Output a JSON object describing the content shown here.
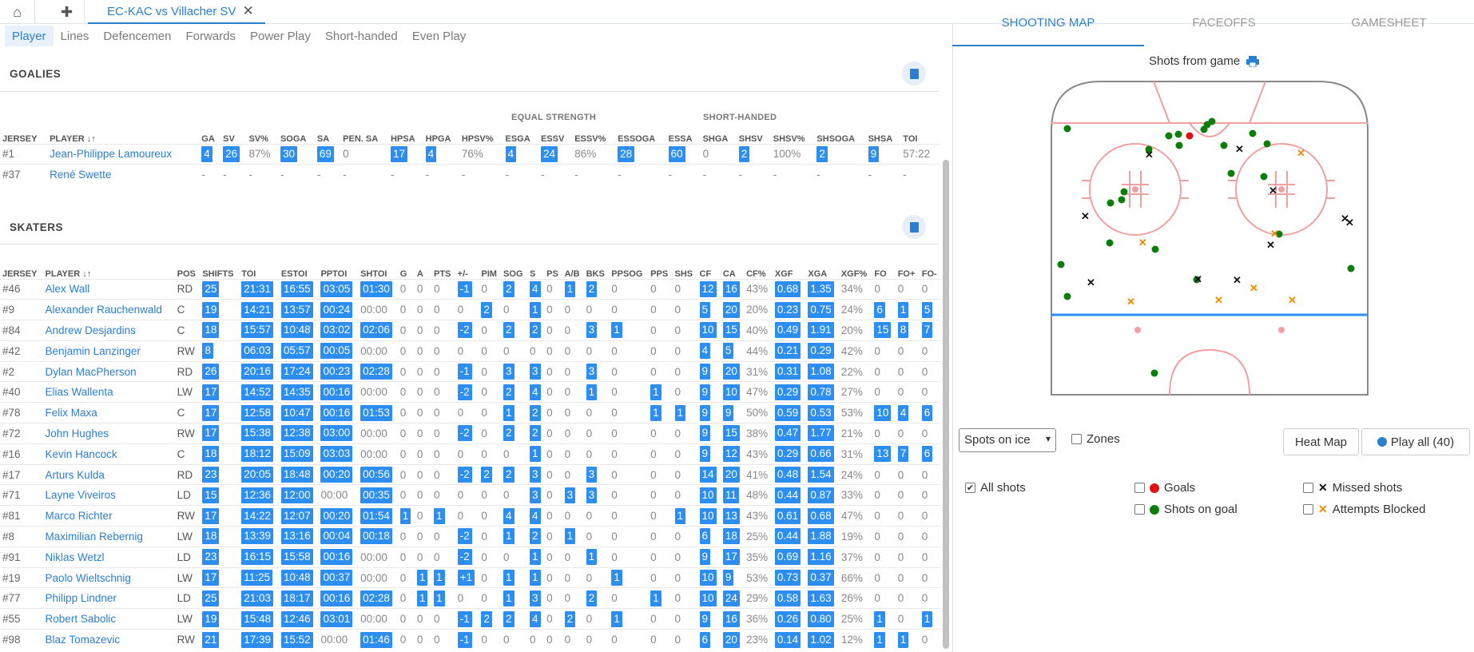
{
  "tabs": {
    "game_tab": "EC-KAC vs Villacher SV",
    "close": "✕",
    "home": "⌂",
    "add": "✚"
  },
  "subtabs": [
    "Player",
    "Lines",
    "Defencemen",
    "Forwards",
    "Power Play",
    "Short-handed",
    "Even Play"
  ],
  "goalies": {
    "title": "GOALIES",
    "group_equal": "EQUAL STRENGTH",
    "group_short": "SHORT-HANDED",
    "headers": [
      "JERSEY",
      "PLAYER ↓↑",
      "GA",
      "SV",
      "SV%",
      "SOGA",
      "SA",
      "PEN. SA",
      "HPSA",
      "HPGA",
      "HPSV%",
      "ESGA",
      "ESSV",
      "ESSV%",
      "ESSOGA",
      "ESSA",
      "SHGA",
      "SHSV",
      "SHSV%",
      "SHSOGA",
      "SHSA",
      "TOI"
    ],
    "rows": [
      [
        "#1",
        "Jean-Philippe Lamoureux",
        "4",
        "26",
        "87%",
        "30",
        "69",
        "0",
        "17",
        "4",
        "76%",
        "4",
        "24",
        "86%",
        "28",
        "60",
        "0",
        "2",
        "100%",
        "2",
        "9",
        "57:22"
      ],
      [
        "#37",
        "René Swette",
        "-",
        "-",
        "-",
        "-",
        "-",
        "-",
        "-",
        "-",
        "-",
        "-",
        "-",
        "-",
        "-",
        "-",
        "-",
        "-",
        "-",
        "-",
        "-",
        "-"
      ]
    ]
  },
  "skaters": {
    "title": "SKATERS",
    "headers": [
      "JERSEY",
      "PLAYER ↓↑",
      "POS",
      "SHIFTS",
      "TOI",
      "ESTOI",
      "PPTOI",
      "SHTOI",
      "G",
      "A",
      "PTS",
      "+/-",
      "PIM",
      "SOG",
      "S",
      "PS",
      "A/B",
      "BKS",
      "PPSOG",
      "PPS",
      "SHS",
      "CF",
      "CA",
      "CF%",
      "XGF",
      "XGA",
      "XGF%",
      "FO",
      "FO+",
      "FO-"
    ],
    "rows": [
      [
        "#46",
        "Alex Wall",
        "RD",
        "25",
        "21:31",
        "16:55",
        "03:05",
        "01:30",
        "0",
        "0",
        "0",
        "-1",
        "0",
        "2",
        "4",
        "0",
        "1",
        "2",
        "0",
        "0",
        "0",
        "12",
        "16",
        "43%",
        "0.68",
        "1.35",
        "34%",
        "0",
        "0",
        "0"
      ],
      [
        "#9",
        "Alexander Rauchenwald",
        "C",
        "19",
        "14:21",
        "13:57",
        "00:24",
        "00:00",
        "0",
        "0",
        "0",
        "0",
        "2",
        "0",
        "1",
        "0",
        "0",
        "0",
        "0",
        "0",
        "0",
        "5",
        "20",
        "20%",
        "0.23",
        "0.75",
        "24%",
        "6",
        "1",
        "5"
      ],
      [
        "#84",
        "Andrew Desjardins",
        "C",
        "18",
        "15:57",
        "10:48",
        "03:02",
        "02:06",
        "0",
        "0",
        "0",
        "-2",
        "0",
        "2",
        "2",
        "0",
        "0",
        "3",
        "1",
        "0",
        "0",
        "10",
        "15",
        "40%",
        "0.49",
        "1.91",
        "20%",
        "15",
        "8",
        "7"
      ],
      [
        "#42",
        "Benjamin Lanzinger",
        "RW",
        "8",
        "06:03",
        "05:57",
        "00:05",
        "00:00",
        "0",
        "0",
        "0",
        "0",
        "0",
        "0",
        "0",
        "0",
        "0",
        "0",
        "0",
        "0",
        "0",
        "4",
        "5",
        "44%",
        "0.21",
        "0.29",
        "42%",
        "0",
        "0",
        "0"
      ],
      [
        "#2",
        "Dylan MacPherson",
        "RD",
        "26",
        "20:16",
        "17:24",
        "00:23",
        "02:28",
        "0",
        "0",
        "0",
        "-1",
        "0",
        "3",
        "3",
        "0",
        "0",
        "3",
        "0",
        "0",
        "0",
        "9",
        "20",
        "31%",
        "0.31",
        "1.08",
        "22%",
        "0",
        "0",
        "0"
      ],
      [
        "#40",
        "Elias Wallenta",
        "LW",
        "17",
        "14:52",
        "14:35",
        "00:16",
        "00:00",
        "0",
        "0",
        "0",
        "-2",
        "0",
        "2",
        "4",
        "0",
        "0",
        "1",
        "0",
        "1",
        "0",
        "9",
        "10",
        "47%",
        "0.29",
        "0.78",
        "27%",
        "0",
        "0",
        "0"
      ],
      [
        "#78",
        "Felix Maxa",
        "C",
        "17",
        "12:58",
        "10:47",
        "00:16",
        "01:53",
        "0",
        "0",
        "0",
        "0",
        "0",
        "1",
        "2",
        "0",
        "0",
        "0",
        "0",
        "1",
        "1",
        "9",
        "9",
        "50%",
        "0.59",
        "0.53",
        "53%",
        "10",
        "4",
        "6"
      ],
      [
        "#72",
        "John Hughes",
        "RW",
        "17",
        "15:38",
        "12:38",
        "03:00",
        "00:00",
        "0",
        "0",
        "0",
        "-2",
        "0",
        "2",
        "2",
        "0",
        "0",
        "0",
        "0",
        "0",
        "0",
        "9",
        "15",
        "38%",
        "0.47",
        "1.77",
        "21%",
        "0",
        "0",
        "0"
      ],
      [
        "#16",
        "Kevin Hancock",
        "C",
        "18",
        "18:12",
        "15:09",
        "03:03",
        "00:00",
        "0",
        "0",
        "0",
        "0",
        "0",
        "0",
        "1",
        "0",
        "0",
        "0",
        "0",
        "0",
        "0",
        "9",
        "12",
        "43%",
        "0.29",
        "0.66",
        "31%",
        "13",
        "7",
        "6"
      ],
      [
        "#17",
        "Arturs Kulda",
        "RD",
        "23",
        "20:05",
        "18:48",
        "00:20",
        "00:56",
        "0",
        "0",
        "0",
        "-2",
        "2",
        "2",
        "3",
        "0",
        "0",
        "3",
        "0",
        "0",
        "0",
        "14",
        "20",
        "41%",
        "0.48",
        "1.54",
        "24%",
        "0",
        "0",
        "0"
      ],
      [
        "#71",
        "Layne Viveiros",
        "LD",
        "15",
        "12:36",
        "12:00",
        "00:00",
        "00:35",
        "0",
        "0",
        "0",
        "0",
        "0",
        "0",
        "3",
        "0",
        "3",
        "3",
        "0",
        "0",
        "0",
        "10",
        "11",
        "48%",
        "0.44",
        "0.87",
        "33%",
        "0",
        "0",
        "0"
      ],
      [
        "#81",
        "Marco Richter",
        "RW",
        "17",
        "14:22",
        "12:07",
        "00:20",
        "01:54",
        "1",
        "0",
        "1",
        "0",
        "0",
        "4",
        "4",
        "0",
        "0",
        "0",
        "0",
        "0",
        "1",
        "10",
        "13",
        "43%",
        "0.61",
        "0.68",
        "47%",
        "0",
        "0",
        "0"
      ],
      [
        "#8",
        "Maximilian Rebernig",
        "LW",
        "18",
        "13:39",
        "13:16",
        "00:04",
        "00:18",
        "0",
        "0",
        "0",
        "-2",
        "0",
        "1",
        "2",
        "0",
        "1",
        "0",
        "0",
        "0",
        "0",
        "6",
        "18",
        "25%",
        "0.44",
        "1.88",
        "19%",
        "0",
        "0",
        "0"
      ],
      [
        "#91",
        "Niklas Wetzl",
        "LD",
        "23",
        "16:15",
        "15:58",
        "00:16",
        "00:00",
        "0",
        "0",
        "0",
        "-2",
        "0",
        "0",
        "1",
        "0",
        "0",
        "1",
        "0",
        "0",
        "0",
        "9",
        "17",
        "35%",
        "0.69",
        "1.16",
        "37%",
        "0",
        "0",
        "0"
      ],
      [
        "#19",
        "Paolo Wieltschnig",
        "LW",
        "17",
        "11:25",
        "10:48",
        "00:37",
        "00:00",
        "0",
        "1",
        "1",
        "+1",
        "0",
        "1",
        "1",
        "0",
        "0",
        "0",
        "1",
        "0",
        "0",
        "10",
        "9",
        "53%",
        "0.73",
        "0.37",
        "66%",
        "0",
        "0",
        "0"
      ],
      [
        "#77",
        "Philipp Lindner",
        "LD",
        "25",
        "21:03",
        "18:17",
        "00:16",
        "02:28",
        "0",
        "1",
        "1",
        "0",
        "0",
        "1",
        "3",
        "0",
        "0",
        "2",
        "0",
        "1",
        "0",
        "10",
        "24",
        "29%",
        "0.58",
        "1.63",
        "26%",
        "0",
        "0",
        "0"
      ],
      [
        "#55",
        "Robert Sabolic",
        "LW",
        "19",
        "15:48",
        "12:46",
        "03:01",
        "00:00",
        "0",
        "0",
        "0",
        "-1",
        "2",
        "2",
        "4",
        "0",
        "2",
        "0",
        "1",
        "0",
        "0",
        "9",
        "16",
        "36%",
        "0.26",
        "0.80",
        "25%",
        "1",
        "0",
        "1"
      ],
      [
        "#98",
        "Blaz Tomazevic",
        "RW",
        "21",
        "17:39",
        "15:52",
        "00:00",
        "01:46",
        "0",
        "0",
        "0",
        "-1",
        "0",
        "0",
        "0",
        "0",
        "0",
        "0",
        "0",
        "0",
        "0",
        "6",
        "20",
        "23%",
        "0.14",
        "1.02",
        "12%",
        "1",
        "1",
        "0"
      ]
    ]
  },
  "right": {
    "tabs": [
      "SHOOTING MAP",
      "FACEOFFS",
      "GAMESHEET"
    ],
    "title": "Shots from game",
    "select_value": "Spots on ice",
    "zones_label": "Zones",
    "heatmap_label": "Heat Map",
    "playall_label": "Play all (40)",
    "legend": {
      "all": "All shots",
      "goals": "Goals",
      "on_goal": "Shots on goal",
      "missed": "Missed shots",
      "blocked": "Attempts Blocked"
    },
    "colors": {
      "goal": "#e01010",
      "on_goal": "#0a7d0a",
      "missed": "#111111",
      "blocked": "#f08a00",
      "rink_red": "#f0a0a0",
      "blue_line": "#2b8ef0"
    }
  }
}
